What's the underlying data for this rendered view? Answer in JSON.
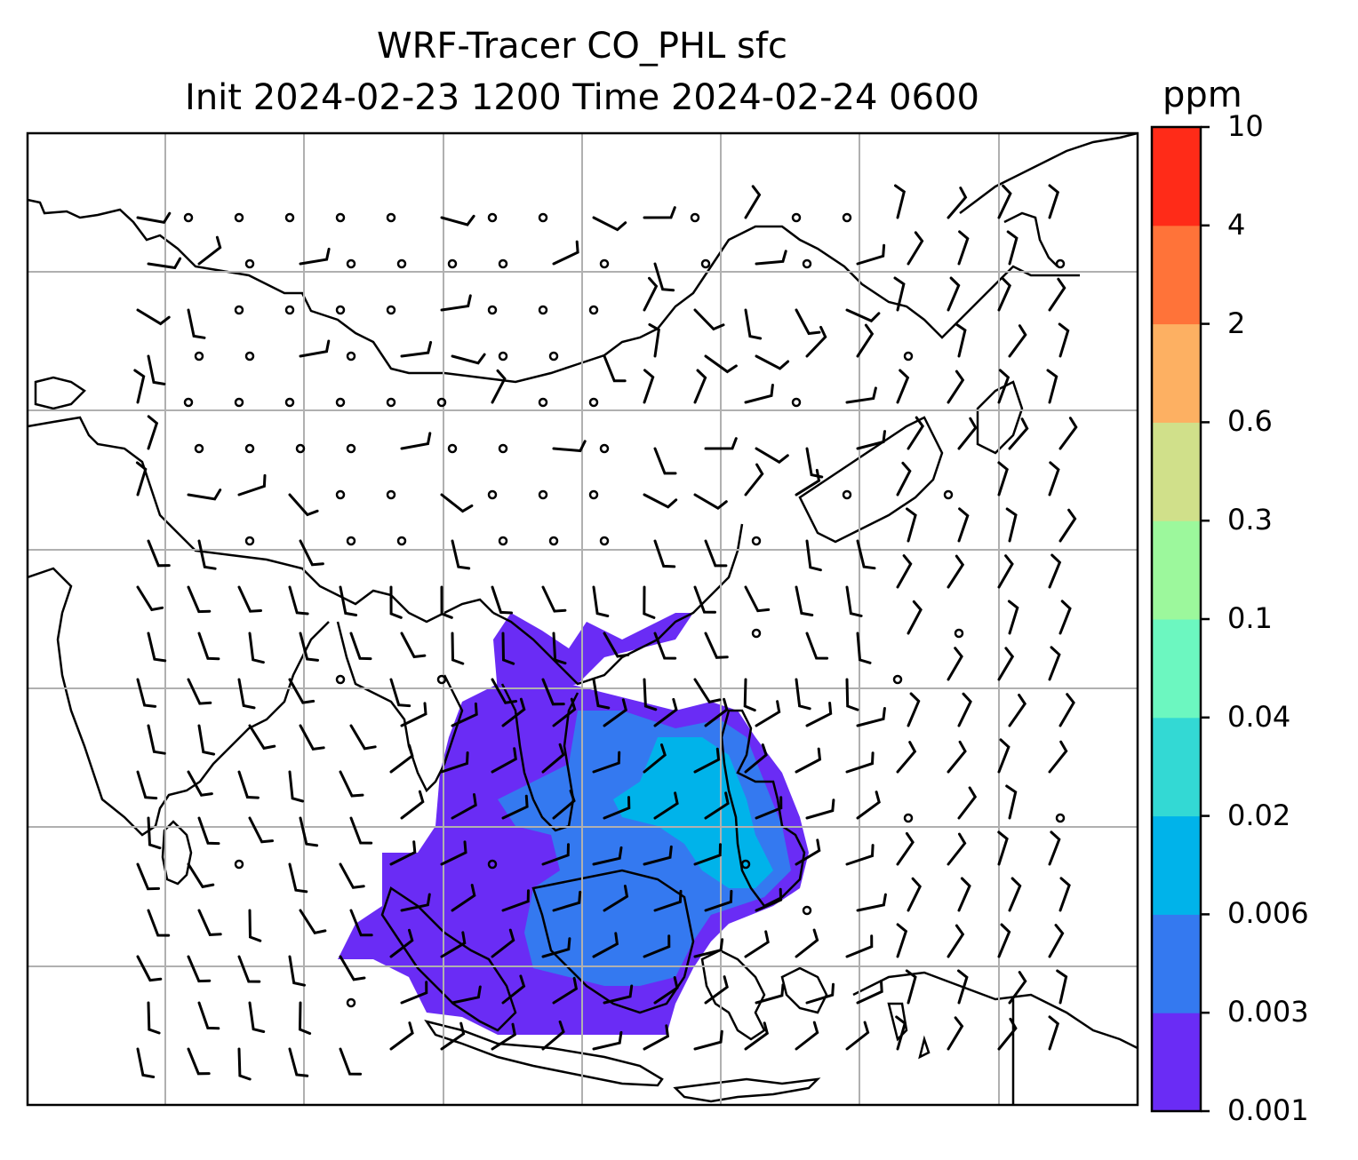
{
  "title": "WRF-Tracer CO_PHL sfc",
  "subtitle": "Init 2024-02-23 1200 Time 2024-02-24 0600",
  "colorbar": {
    "unit": "ppm",
    "levels": [
      "0.001",
      "0.003",
      "0.006",
      "0.02",
      "0.04",
      "0.1",
      "0.3",
      "0.6",
      "2",
      "4",
      "10"
    ],
    "colors": [
      "#6a2cf5",
      "#3479f0",
      "#00b3ea",
      "#33d9d4",
      "#6cf7c0",
      "#9cf89c",
      "#d0e08a",
      "#fdb062",
      "#ff7339",
      "#ff2b18"
    ]
  },
  "map": {
    "gridlines": true,
    "grid_color": "#b0b0b0",
    "coastline_color": "#000000",
    "plume_colors": [
      "#6a2cf5",
      "#3479f0",
      "#00b3ea"
    ],
    "vectors": "wind-barbs"
  }
}
